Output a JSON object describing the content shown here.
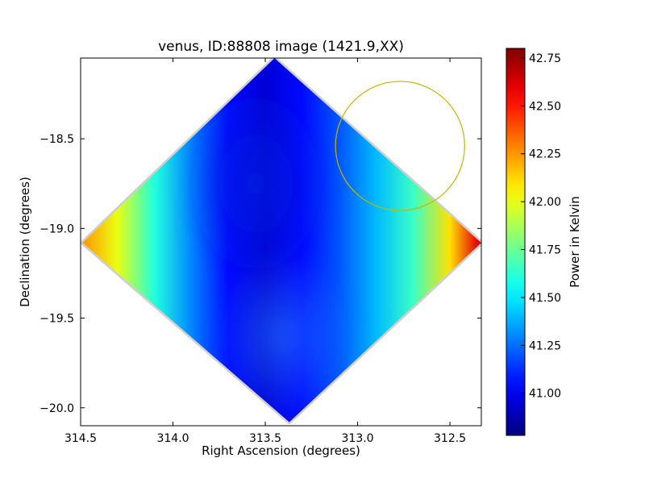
{
  "chart_data": {
    "type": "heatmap",
    "title": "venus, ID:88808 image (1421.9,XX)",
    "xlabel": "Right Ascension (degrees)",
    "ylabel": "Declination (degrees)",
    "xlim": [
      314.5,
      312.33
    ],
    "ylim": [
      -20.1,
      -18.05
    ],
    "x_ticks": [
      314.5,
      314.0,
      313.5,
      313.0,
      312.5
    ],
    "x_tick_labels": [
      "314.5",
      "314.0",
      "313.5",
      "313.0",
      "312.5"
    ],
    "y_ticks": [
      -18.5,
      -19.0,
      -19.5,
      -20.0
    ],
    "y_tick_labels": [
      "−18.5",
      "−19.0",
      "−19.5",
      "−20.0"
    ],
    "colormap": "jet",
    "colorbar": {
      "label": "Power in Kelvin",
      "range": [
        40.78,
        42.8
      ],
      "ticks": [
        41.0,
        41.25,
        41.5,
        41.75,
        42.0,
        42.25,
        42.5,
        42.75
      ],
      "tick_labels": [
        "41.00",
        "41.25",
        "41.50",
        "41.75",
        "42.00",
        "42.25",
        "42.50",
        "42.75"
      ]
    },
    "map_footprint": [
      {
        "ra": 313.45,
        "dec": -18.05
      },
      {
        "ra": 312.33,
        "dec": -19.08
      },
      {
        "ra": 313.37,
        "dec": -20.08
      },
      {
        "ra": 314.49,
        "dec": -19.08
      }
    ],
    "value_profile_along_ra": {
      "ra": [
        314.5,
        314.3,
        314.1,
        313.9,
        313.7,
        313.5,
        313.3,
        313.1,
        312.9,
        312.7,
        312.5,
        312.35
      ],
      "kelvin": [
        42.25,
        42.0,
        41.6,
        41.3,
        41.05,
        40.95,
        41.05,
        41.2,
        41.4,
        41.65,
        42.1,
        42.6
      ]
    },
    "annotations": [
      {
        "type": "circle",
        "center_ra": 312.77,
        "center_dec": -18.54,
        "radius_deg": 0.36,
        "color": "#c8b400"
      }
    ],
    "grid": false
  }
}
